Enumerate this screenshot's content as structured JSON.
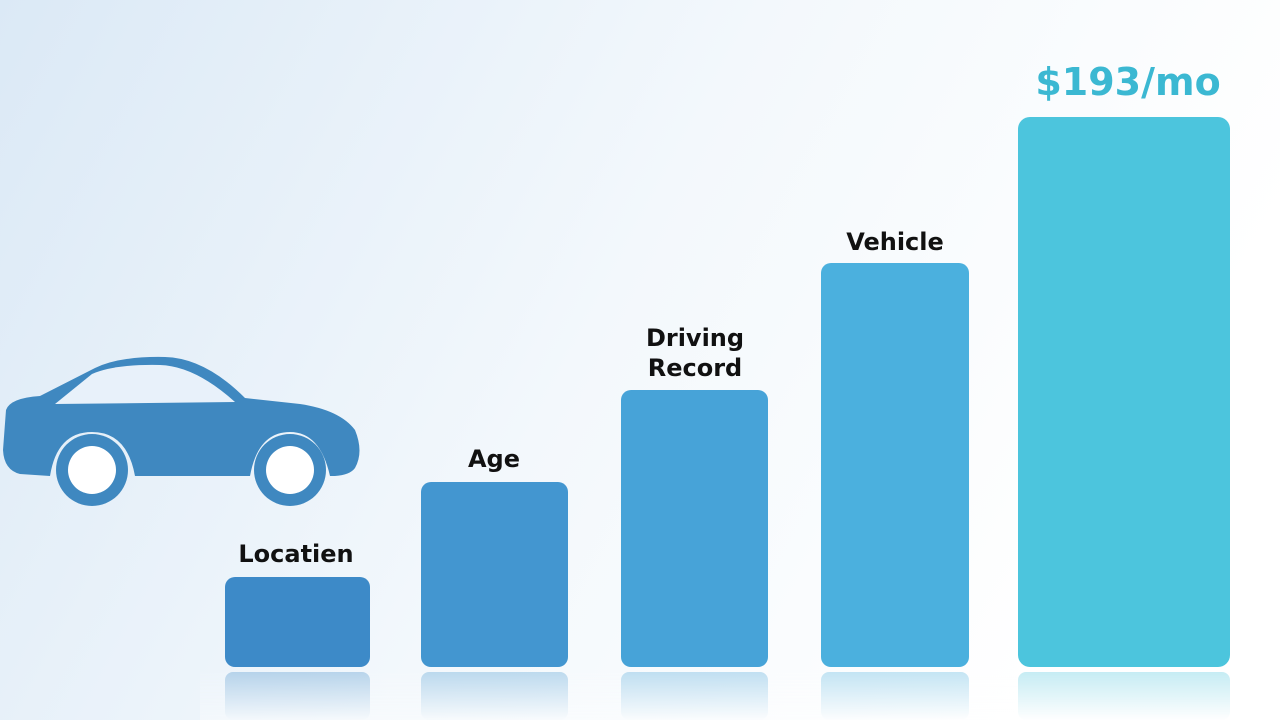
{
  "factors": [
    {
      "label": [
        "Locatien"
      ]
    },
    {
      "label": [
        "Age"
      ]
    },
    {
      "label": [
        "Driving",
        "Record"
      ]
    },
    {
      "label": [
        "Vehicle"
      ]
    }
  ],
  "total": {
    "label": "$193/mo"
  }
}
